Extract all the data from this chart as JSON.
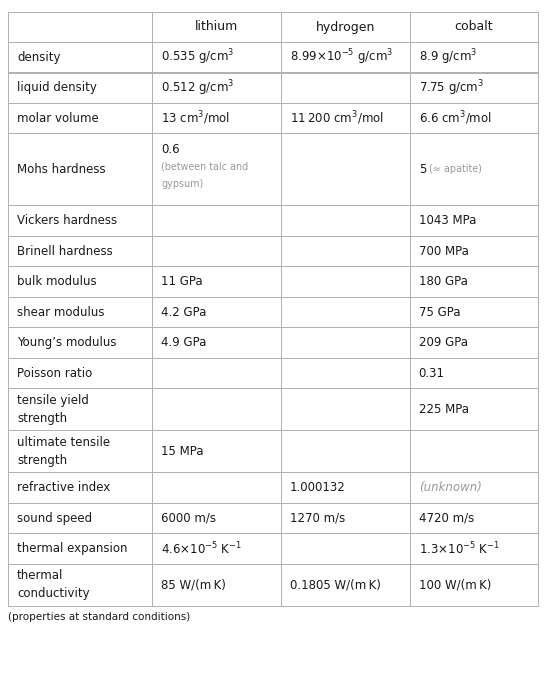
{
  "col_headers": [
    "",
    "lithium",
    "hydrogen",
    "cobalt"
  ],
  "rows": [
    {
      "property": "density",
      "cells": [
        {
          "parts": [
            {
              "t": "0.535 g/cm",
              "s": "3"
            }
          ]
        },
        {
          "parts": [
            {
              "t": "8.99×10",
              "s": "−5",
              "t2": " g/cm",
              "s2": "3"
            }
          ]
        },
        {
          "parts": [
            {
              "t": "8.9 g/cm",
              "s": "3"
            }
          ]
        }
      ]
    },
    {
      "property": "liquid density",
      "cells": [
        {
          "parts": [
            {
              "t": "0.512 g/cm",
              "s": "3"
            }
          ]
        },
        {
          "parts": []
        },
        {
          "parts": [
            {
              "t": "7.75 g/cm",
              "s": "3"
            }
          ]
        }
      ]
    },
    {
      "property": "molar volume",
      "cells": [
        {
          "parts": [
            {
              "t": "13 cm",
              "s": "3",
              "t2": "/mol"
            }
          ]
        },
        {
          "parts": [
            {
              "t": "11 200 cm",
              "s": "3",
              "t2": "/mol"
            }
          ]
        },
        {
          "parts": [
            {
              "t": "6.6 cm",
              "s": "3",
              "t2": "/mol"
            }
          ]
        }
      ]
    },
    {
      "property": "Mohs hardness",
      "cells": [
        {
          "multiline": [
            "0.6",
            "(between talc and",
            "gypsum)"
          ],
          "line0_bold": false
        },
        {
          "parts": []
        },
        {
          "withsub": [
            "5",
            "(≈ apatite)"
          ]
        }
      ],
      "tall": true
    },
    {
      "property": "Vickers hardness",
      "cells": [
        {
          "parts": []
        },
        {
          "parts": []
        },
        {
          "parts": [
            {
              "t": "1043 MPa"
            }
          ]
        }
      ]
    },
    {
      "property": "Brinell hardness",
      "cells": [
        {
          "parts": []
        },
        {
          "parts": []
        },
        {
          "parts": [
            {
              "t": "700 MPa"
            }
          ]
        }
      ]
    },
    {
      "property": "bulk modulus",
      "cells": [
        {
          "parts": [
            {
              "t": "11 GPa"
            }
          ]
        },
        {
          "parts": []
        },
        {
          "parts": [
            {
              "t": "180 GPa"
            }
          ]
        }
      ]
    },
    {
      "property": "shear modulus",
      "cells": [
        {
          "parts": [
            {
              "t": "4.2 GPa"
            }
          ]
        },
        {
          "parts": []
        },
        {
          "parts": [
            {
              "t": "75 GPa"
            }
          ]
        }
      ]
    },
    {
      "property": "Young’s modulus",
      "cells": [
        {
          "parts": [
            {
              "t": "4.9 GPa"
            }
          ]
        },
        {
          "parts": []
        },
        {
          "parts": [
            {
              "t": "209 GPa"
            }
          ]
        }
      ]
    },
    {
      "property": "Poisson ratio",
      "cells": [
        {
          "parts": []
        },
        {
          "parts": []
        },
        {
          "parts": [
            {
              "t": "0.31"
            }
          ]
        }
      ]
    },
    {
      "property": "tensile yield\nstrength",
      "cells": [
        {
          "parts": []
        },
        {
          "parts": []
        },
        {
          "parts": [
            {
              "t": "225 MPa"
            }
          ]
        }
      ],
      "medium": true
    },
    {
      "property": "ultimate tensile\nstrength",
      "cells": [
        {
          "parts": [
            {
              "t": "15 MPa"
            }
          ]
        },
        {
          "parts": []
        },
        {
          "parts": []
        }
      ],
      "medium": true
    },
    {
      "property": "refractive index",
      "cells": [
        {
          "parts": []
        },
        {
          "parts": [
            {
              "t": "1.000132"
            }
          ]
        },
        {
          "parts": [
            {
              "t": "(unknown)",
              "gray": true
            }
          ]
        }
      ]
    },
    {
      "property": "sound speed",
      "cells": [
        {
          "parts": [
            {
              "t": "6000 m/s"
            }
          ]
        },
        {
          "parts": [
            {
              "t": "1270 m/s"
            }
          ]
        },
        {
          "parts": [
            {
              "t": "4720 m/s"
            }
          ]
        }
      ]
    },
    {
      "property": "thermal expansion",
      "cells": [
        {
          "parts": [
            {
              "t": "4.6×10",
              "s": "−5",
              "t2": " K",
              "s2": "−1"
            }
          ]
        },
        {
          "parts": []
        },
        {
          "parts": [
            {
              "t": "1.3×10",
              "s": "−5",
              "t2": " K",
              "s2": "−1"
            }
          ]
        }
      ]
    },
    {
      "property": "thermal\nconductivity",
      "cells": [
        {
          "parts": [
            {
              "t": "85 W/(m K)"
            }
          ]
        },
        {
          "parts": [
            {
              "t": "0.1805 W/(m K)"
            }
          ]
        },
        {
          "parts": [
            {
              "t": "100 W/(m K)"
            }
          ]
        }
      ],
      "medium": true
    }
  ],
  "footer": "(properties at standard conditions)",
  "bg_color": "#ffffff",
  "border_color": "#b0b0b0",
  "text_color": "#1a1a1a",
  "gray_color": "#999999",
  "font_size": 8.5,
  "header_font_size": 9.0
}
